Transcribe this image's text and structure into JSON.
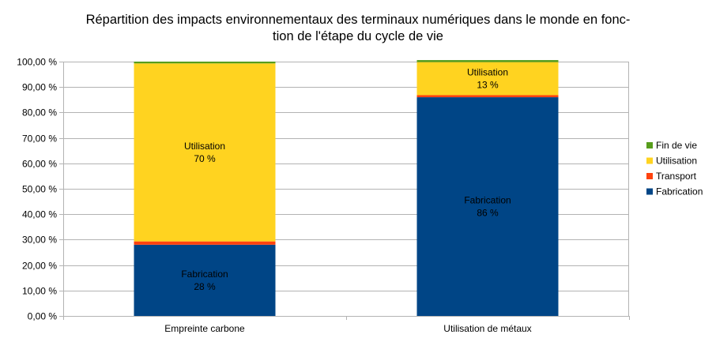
{
  "chart_data": {
    "type": "bar",
    "stacked": true,
    "title_lines": [
      "Répartition des impacts environnementaux des terminaux numériques dans le monde en fonc-",
      "tion de l'étape du cycle de vie"
    ],
    "categories": [
      "Empreinte carbone",
      "Utilisation de métaux"
    ],
    "ylim": [
      0,
      100
    ],
    "y_tick_step": 10,
    "y_tick_labels": [
      "0,00 %",
      "10,00 %",
      "20,00 %",
      "30,00 %",
      "40,00 %",
      "50,00 %",
      "60,00 %",
      "70,00 %",
      "80,00 %",
      "90,00 %",
      "100,00 %"
    ],
    "grid": true,
    "legend_position": "right",
    "series": [
      {
        "name": "Fabrication",
        "color": "#004586",
        "values": [
          28,
          86
        ],
        "labels": [
          "28 %",
          "86 %"
        ]
      },
      {
        "name": "Transport",
        "color": "#ff420e",
        "values": [
          1.3,
          0.8
        ],
        "labels": [
          "",
          ""
        ]
      },
      {
        "name": "Utilisation",
        "color": "#ffd320",
        "values": [
          70,
          13
        ],
        "labels": [
          "70 %",
          "13 %"
        ]
      },
      {
        "name": "Fin de vie",
        "color": "#579d1c",
        "values": [
          0.7,
          0.8
        ],
        "labels": [
          "",
          ""
        ]
      }
    ]
  }
}
